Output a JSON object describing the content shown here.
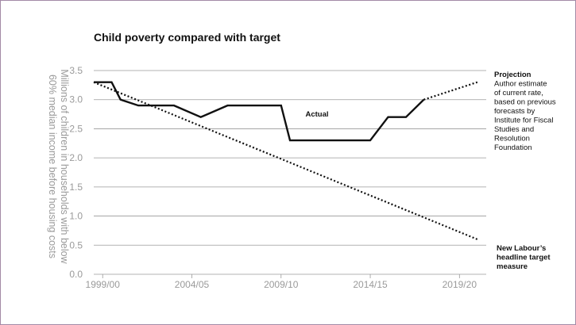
{
  "chart_data": {
    "type": "line",
    "title": "Child poverty compared with target",
    "ylabel_lines": [
      "Millions of children in households with below",
      "60% median income before housing costs"
    ],
    "xlabel": "",
    "ylim": [
      0,
      3.5
    ],
    "xlim": [
      1998,
      2020
    ],
    "yticks": [
      0.0,
      0.5,
      1.0,
      1.5,
      2.0,
      2.5,
      3.0,
      3.5
    ],
    "yticklabels": [
      "0.0",
      "0.5",
      "1.0",
      "1.5",
      "2.0",
      "2.5",
      "3.0",
      "3.5"
    ],
    "xticks": [
      1998.5,
      2003.5,
      2008.5,
      2013.5,
      2018.5
    ],
    "xticklabels": [
      "1999/00",
      "2004/05",
      "2009/10",
      "2014/15",
      "2019/20"
    ],
    "grid": "horizontal",
    "series": [
      {
        "name": "Actual",
        "style": "solid",
        "x": [
          1998,
          1999,
          1999.5,
          2000.5,
          2002.5,
          2004,
          2005.5,
          2006,
          2007.5,
          2008.5,
          2009,
          2010,
          2011.5,
          2012.5,
          2013.5,
          2014.5,
          2015.5,
          2016.5
        ],
        "y": [
          3.3,
          3.3,
          3.0,
          2.9,
          2.9,
          2.7,
          2.9,
          2.9,
          2.9,
          2.9,
          2.3,
          2.3,
          2.3,
          2.3,
          2.3,
          2.7,
          2.7,
          3.0
        ]
      },
      {
        "name": "Projection",
        "style": "dotted",
        "x": [
          2016.5,
          2019.5
        ],
        "y": [
          3.0,
          3.3
        ]
      },
      {
        "name": "New Labour’s headline target measure",
        "style": "dotted",
        "x": [
          1998,
          2019.5
        ],
        "y": [
          3.3,
          0.6
        ]
      }
    ],
    "annotations": {
      "actual": "Actual",
      "projection_title": "Projection",
      "projection_lines": [
        "Author estimate",
        "of current rate,",
        "based on previous",
        "forecasts by",
        "Institute for Fiscal",
        "Studies and",
        "Resolution",
        "Foundation"
      ],
      "target_lines": [
        "New Labour’s",
        "headline target",
        "measure"
      ]
    },
    "colors": {
      "line": "#111111",
      "grid": "#9a9a9a",
      "tick_text": "#9a9a9a",
      "border": "#a38aa6"
    }
  }
}
